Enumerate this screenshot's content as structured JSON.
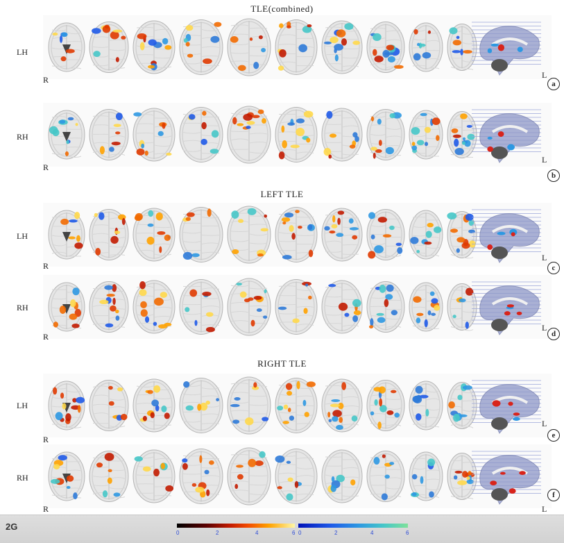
{
  "sections": {
    "combined_title": "TLE(combined)",
    "left_title": "LEFT TLE",
    "right_title": "RIGHT TLE"
  },
  "rows": [
    {
      "hemisphere": "LH",
      "r_label": "R",
      "l_label": "L",
      "panel": "a"
    },
    {
      "hemisphere": "RH",
      "r_label": "R",
      "l_label": "L",
      "panel": "b"
    },
    {
      "hemisphere": "LH",
      "r_label": "R",
      "l_label": "L",
      "panel": "c"
    },
    {
      "hemisphere": "RH",
      "r_label": "R",
      "l_label": "L",
      "panel": "d"
    },
    {
      "hemisphere": "LH",
      "r_label": "R",
      "l_label": "L",
      "panel": "e"
    },
    {
      "hemisphere": "RH",
      "r_label": "R",
      "l_label": "L",
      "panel": "f"
    }
  ],
  "colorbar": {
    "tag": "2G",
    "positive_ticks": [
      "0",
      "2",
      "4",
      "6"
    ],
    "negative_ticks": [
      "0",
      "2",
      "4",
      "6"
    ],
    "positive_colors": [
      "#000000",
      "#c21b00",
      "#ffa200",
      "#fff8a8"
    ],
    "negative_colors": [
      "#0012b8",
      "#2d98e2",
      "#7fe19a"
    ]
  }
}
